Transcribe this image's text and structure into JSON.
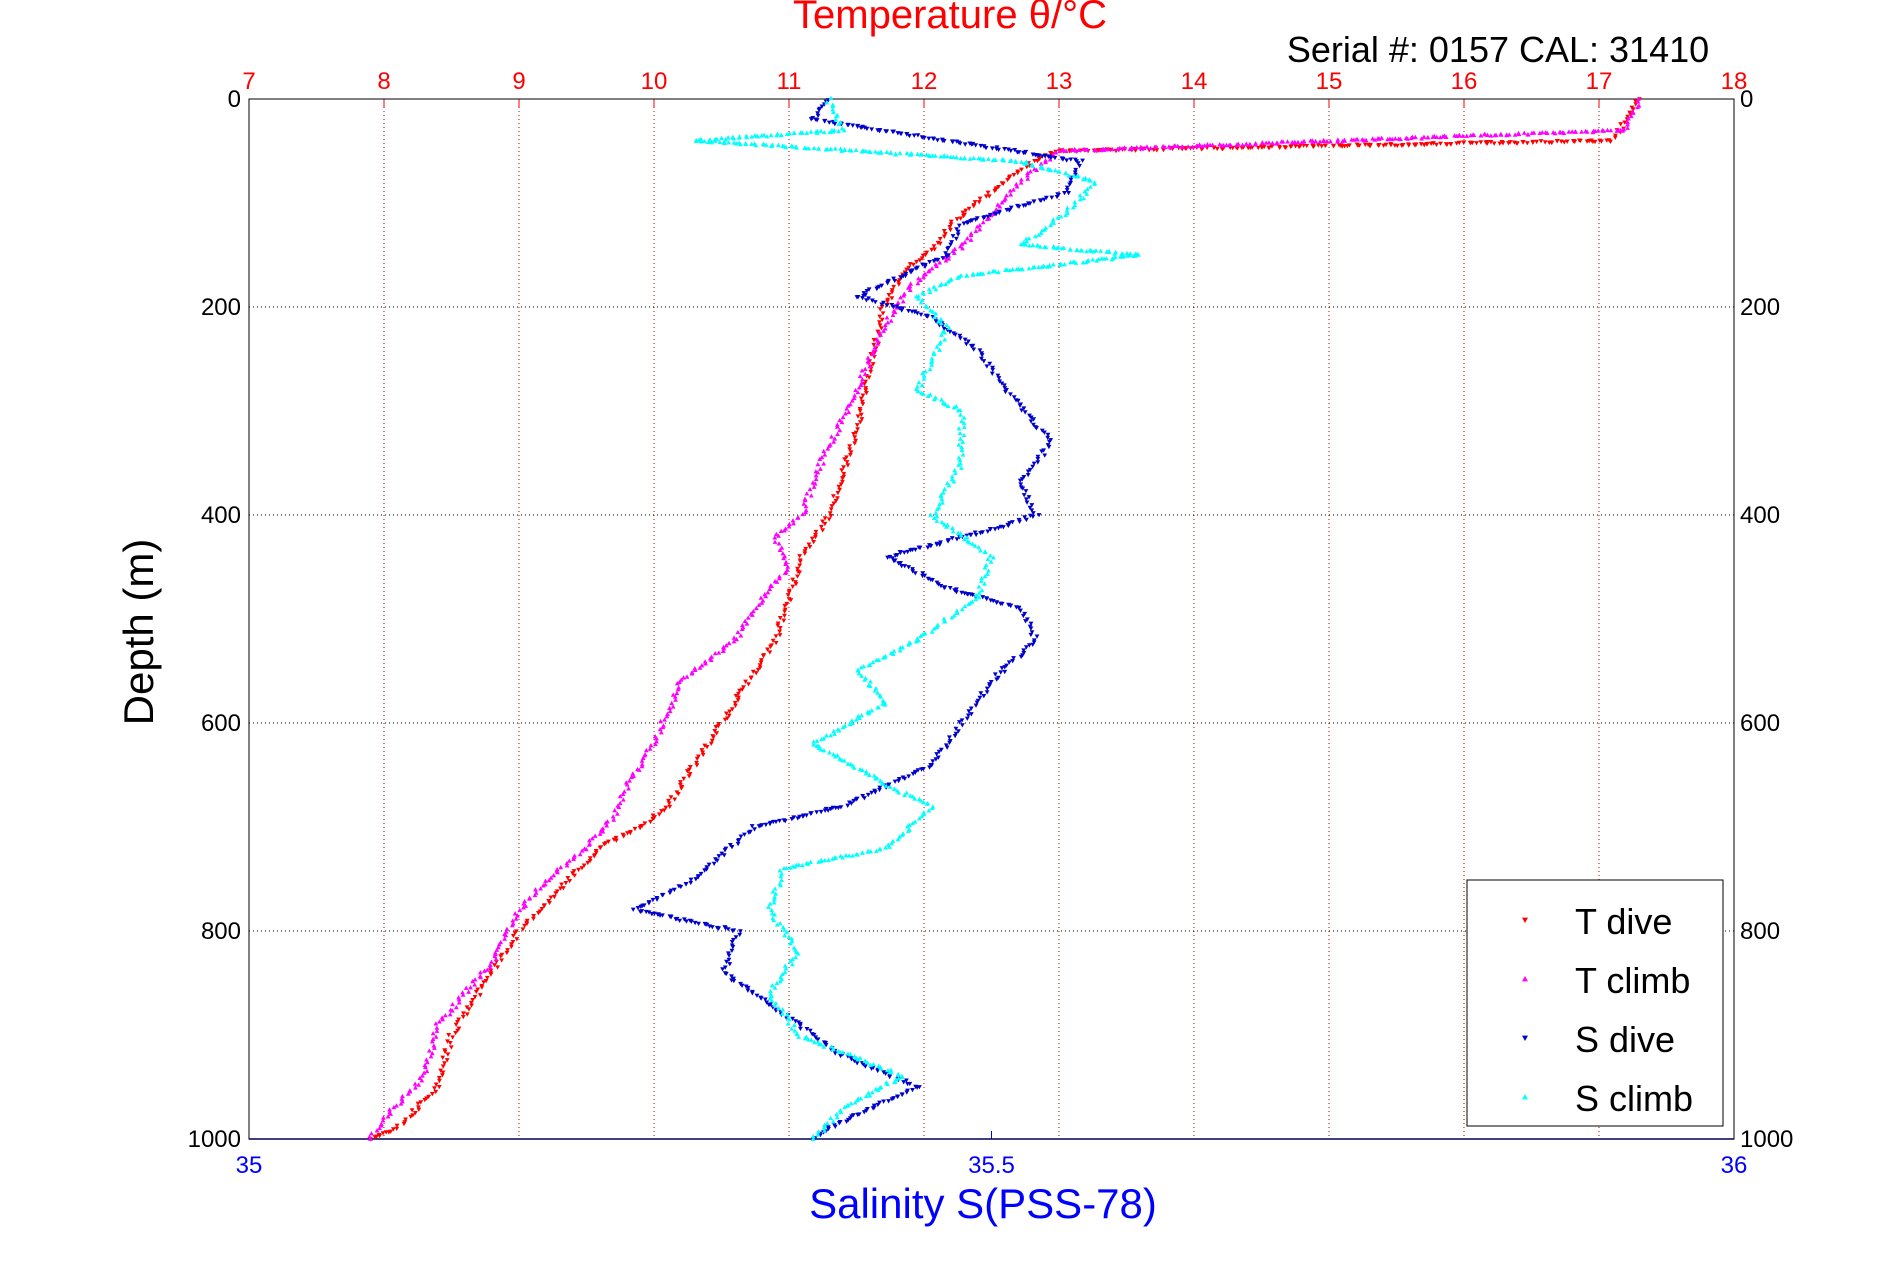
{
  "header": {
    "top_title": "Temperature θ/°C",
    "serial_label": "Serial #: 0157  CAL: 31410"
  },
  "axes": {
    "depth_label": "Depth (m)",
    "salinity_label": "Salinity S(PSS-78)"
  },
  "colors": {
    "temperature_axis": "#ff0000",
    "salinity_axis": "#0000ff",
    "t_dive": "#ff0000",
    "t_climb": "#ff00ff",
    "s_dive": "#0000cc",
    "s_climb": "#00ffff",
    "grid": "#c00000"
  },
  "chart_data": {
    "type": "scatter",
    "y_label": "Depth (m)",
    "y_range": [
      0,
      1000
    ],
    "y_reversed": true,
    "y_ticks": [
      0,
      200,
      400,
      600,
      800,
      1000
    ],
    "temperature_axis": {
      "label": "Temperature θ/°C",
      "position": "top",
      "range": [
        7,
        18
      ],
      "ticks": [
        7,
        8,
        9,
        10,
        11,
        12,
        13,
        14,
        15,
        16,
        17,
        18
      ]
    },
    "salinity_axis": {
      "label": "Salinity S(PSS-78)",
      "position": "bottom",
      "range": [
        35,
        36
      ],
      "ticks": [
        35,
        35.5,
        36
      ],
      "tick_labels": [
        "35",
        "35.5",
        "36"
      ]
    },
    "grid": true,
    "legend_position": "bottom-right",
    "series": [
      {
        "name": "T dive",
        "axis": "temperature",
        "color": "#ff0000",
        "marker": "triangle-down",
        "points": [
          [
            17.3,
            0
          ],
          [
            17.2,
            20
          ],
          [
            17.1,
            40
          ],
          [
            13.0,
            50
          ],
          [
            12.8,
            60
          ],
          [
            12.6,
            80
          ],
          [
            12.4,
            100
          ],
          [
            12.2,
            120
          ],
          [
            12.1,
            140
          ],
          [
            11.9,
            160
          ],
          [
            11.7,
            200
          ],
          [
            11.6,
            260
          ],
          [
            11.5,
            320
          ],
          [
            11.4,
            360
          ],
          [
            11.3,
            400
          ],
          [
            11.1,
            440
          ],
          [
            11.0,
            480
          ],
          [
            10.9,
            520
          ],
          [
            10.7,
            560
          ],
          [
            10.5,
            600
          ],
          [
            10.3,
            640
          ],
          [
            10.1,
            680
          ],
          [
            9.9,
            700
          ],
          [
            9.6,
            720
          ],
          [
            9.3,
            760
          ],
          [
            9.0,
            800
          ],
          [
            8.9,
            820
          ],
          [
            8.8,
            840
          ],
          [
            8.5,
            900
          ],
          [
            8.4,
            950
          ],
          [
            8.1,
            990
          ],
          [
            7.9,
            1000
          ]
        ]
      },
      {
        "name": "T climb",
        "axis": "temperature",
        "color": "#ff00ff",
        "marker": "triangle-up",
        "points": [
          [
            17.3,
            0
          ],
          [
            17.2,
            30
          ],
          [
            14.0,
            45
          ],
          [
            13.0,
            50
          ],
          [
            12.8,
            70
          ],
          [
            12.5,
            110
          ],
          [
            12.3,
            140
          ],
          [
            11.9,
            180
          ],
          [
            11.7,
            220
          ],
          [
            11.5,
            280
          ],
          [
            11.2,
            360
          ],
          [
            11.1,
            400
          ],
          [
            10.9,
            420
          ],
          [
            11.0,
            450
          ],
          [
            10.8,
            480
          ],
          [
            10.6,
            520
          ],
          [
            10.2,
            560
          ],
          [
            10.0,
            620
          ],
          [
            9.8,
            660
          ],
          [
            9.7,
            690
          ],
          [
            9.5,
            720
          ],
          [
            9.3,
            740
          ],
          [
            9.0,
            780
          ],
          [
            8.8,
            830
          ],
          [
            8.6,
            860
          ],
          [
            8.4,
            890
          ],
          [
            8.3,
            940
          ],
          [
            8.0,
            980
          ],
          [
            7.9,
            1000
          ]
        ]
      },
      {
        "name": "S dive",
        "axis": "salinity",
        "color": "#0000cc",
        "marker": "triangle-down",
        "points": [
          [
            35.39,
            0
          ],
          [
            35.38,
            20
          ],
          [
            35.56,
            60
          ],
          [
            35.55,
            90
          ],
          [
            35.48,
            120
          ],
          [
            35.47,
            150
          ],
          [
            35.41,
            190
          ],
          [
            35.46,
            210
          ],
          [
            35.49,
            240
          ],
          [
            35.51,
            280
          ],
          [
            35.54,
            330
          ],
          [
            35.52,
            370
          ],
          [
            35.53,
            400
          ],
          [
            35.51,
            410
          ],
          [
            35.43,
            440
          ],
          [
            35.47,
            470
          ],
          [
            35.52,
            490
          ],
          [
            35.53,
            520
          ],
          [
            35.5,
            560
          ],
          [
            35.48,
            600
          ],
          [
            35.46,
            640
          ],
          [
            35.4,
            680
          ],
          [
            35.34,
            700
          ],
          [
            35.3,
            750
          ],
          [
            35.26,
            780
          ],
          [
            35.33,
            800
          ],
          [
            35.32,
            840
          ],
          [
            35.36,
            880
          ],
          [
            35.4,
            920
          ],
          [
            35.45,
            950
          ],
          [
            35.39,
            990
          ],
          [
            35.38,
            1000
          ]
        ]
      },
      {
        "name": "S climb",
        "axis": "salinity",
        "color": "#00ffff",
        "marker": "triangle-up",
        "points": [
          [
            35.39,
            0
          ],
          [
            35.4,
            30
          ],
          [
            35.3,
            40
          ],
          [
            35.52,
            60
          ],
          [
            35.57,
            80
          ],
          [
            35.55,
            110
          ],
          [
            35.52,
            140
          ],
          [
            35.6,
            150
          ],
          [
            35.48,
            170
          ],
          [
            35.45,
            190
          ],
          [
            35.47,
            220
          ],
          [
            35.45,
            280
          ],
          [
            35.48,
            300
          ],
          [
            35.48,
            350
          ],
          [
            35.46,
            400
          ],
          [
            35.5,
            440
          ],
          [
            35.49,
            480
          ],
          [
            35.45,
            520
          ],
          [
            35.41,
            550
          ],
          [
            35.43,
            580
          ],
          [
            35.38,
            620
          ],
          [
            35.43,
            660
          ],
          [
            35.46,
            680
          ],
          [
            35.43,
            720
          ],
          [
            35.36,
            740
          ],
          [
            35.35,
            780
          ],
          [
            35.37,
            820
          ],
          [
            35.35,
            860
          ],
          [
            35.37,
            900
          ],
          [
            35.44,
            940
          ],
          [
            35.4,
            970
          ],
          [
            35.38,
            1000
          ]
        ]
      }
    ]
  }
}
